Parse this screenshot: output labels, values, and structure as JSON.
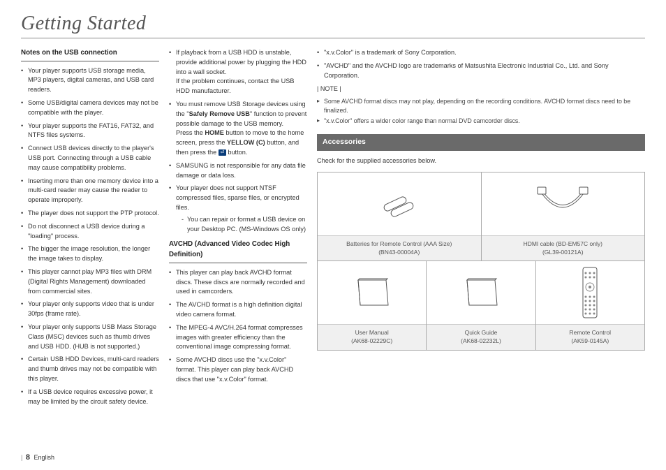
{
  "title": "Getting Started",
  "col1": {
    "heading": "Notes on the USB connection",
    "items": [
      "Your player supports USB storage media, MP3 players, digital cameras, and USB card readers.",
      "Some USB/digital camera devices may not be compatible with the player.",
      "Your player supports the FAT16, FAT32, and NTFS files systems.",
      "Connect USB devices directly to the player's USB port. Connecting through a USB cable may cause compatibility problems.",
      "Inserting more than one memory device into a multi-card reader may cause the reader to operate improperly.",
      "The player does not support the PTP protocol.",
      "Do not disconnect a USB device during a \"loading\" process.",
      "The bigger the image resolution, the longer the image takes to display.",
      "This player cannot play MP3 files with DRM (Digital Rights Management) downloaded from commercial sites.",
      "Your player only supports video that is under 30fps (frame rate).",
      "Your player only supports USB Mass Storage Class (MSC) devices such as thumb drives and USB HDD. (HUB is not supported.)",
      "Certain USB HDD Devices, multi-card readers and thumb drives may not be compatible with this player.",
      "If a USB device requires excessive power, it may be limited by the circuit safety device."
    ]
  },
  "col2": {
    "top_items_html": [
      "If playback from a USB HDD is unstable, provide additional power by plugging the HDD into a wall socket.<br>If the problem continues, contact the USB HDD manufacturer.",
      "You must remove USB Storage devices using the \"<span class='bold'>Safely Remove USB</span>\" function to prevent possible damage to the USB memory.<br>Press the <span class='bold'>HOME</span> button to move to the home screen, press the <span class='bold'>YELLOW (C)</span> button, and then press the <span class='inline-icon'>⏎</span> button.",
      "SAMSUNG is not responsible for any data file damage or data loss.",
      "Your player does not support NTSF compressed files, sparse files, or encrypted files."
    ],
    "sub_item": "You can repair or format a USB device on your Desktop PC. (MS-Windows OS only)",
    "heading2": "AVCHD (Advanced Video Codec High Definition)",
    "items2": [
      "This player can play back AVCHD format discs. These discs are normally recorded and used in camcorders.",
      "The AVCHD format is a high definition digital video camera format.",
      "The MPEG-4 AVC/H.264 format compresses images with greater efficiency than the conventional image compressing format.",
      "Some AVCHD discs use the \"x.v.Color\" format. This player can play back AVCHD discs that use \"x.v.Color\" format."
    ]
  },
  "col3": {
    "top_items": [
      "\"x.v.Color\" is a trademark of Sony Corporation.",
      "\"AVCHD\" and the AVCHD logo are trademarks of Matsushita Electronic Industrial Co., Ltd. and Sony Corporation."
    ],
    "note_label": "| NOTE |",
    "notes": [
      "Some AVCHD format discs may not play, depending on the recording conditions. AVCHD format discs need to be finalized.",
      "\"x.v.Color\" offers a wider color range than normal DVD camcorder discs."
    ],
    "section_title": "Accessories",
    "intro": "Check for the supplied accessories below.",
    "accessories_row1": [
      {
        "title": "Batteries for Remote Control (AAA Size)",
        "code": "(BN43-00004A)"
      },
      {
        "title": "HDMI cable (BD-EM57C only)",
        "code": "(GL39-00121A)"
      }
    ],
    "accessories_row2": [
      {
        "title": "User Manual",
        "code": "(AK68-02229C)"
      },
      {
        "title": "Quick Guide",
        "code": "(AK68-02232L)"
      },
      {
        "title": "Remote Control",
        "code": "(AK59-0145A)"
      }
    ]
  },
  "footer": {
    "page": "8",
    "lang": "English"
  },
  "colors": {
    "section_bar_bg": "#6a6a6a",
    "label_bg": "#f0f0f0",
    "border": "#aaaaaa",
    "text": "#333333"
  }
}
